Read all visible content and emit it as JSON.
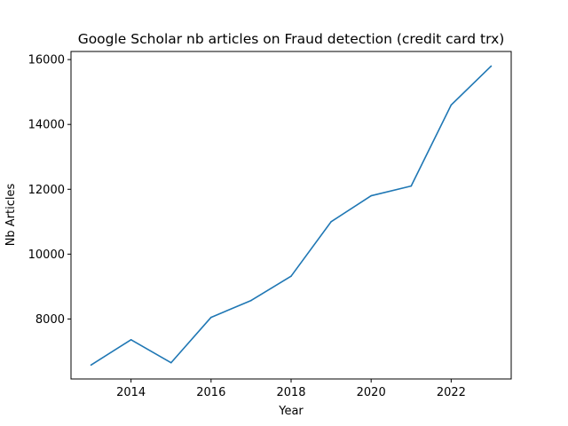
{
  "chart_data": {
    "type": "line",
    "title": "Google Scholar nb articles on Fraud detection (credit card trx)",
    "xlabel": "Year",
    "ylabel": "Nb Articles",
    "xlim": [
      2012.5,
      2023.5
    ],
    "ylim": [
      6150,
      16250
    ],
    "xticks": [
      2014,
      2016,
      2018,
      2020,
      2022
    ],
    "yticks": [
      8000,
      10000,
      12000,
      14000,
      16000
    ],
    "grid": false,
    "series": [
      {
        "color": "#1f77b4",
        "x": [
          2013,
          2014,
          2015,
          2016,
          2017,
          2018,
          2019,
          2020,
          2021,
          2022,
          2023
        ],
        "y": [
          6580,
          7360,
          6650,
          8050,
          8570,
          9320,
          11000,
          11800,
          12100,
          14600,
          15800
        ]
      }
    ]
  }
}
